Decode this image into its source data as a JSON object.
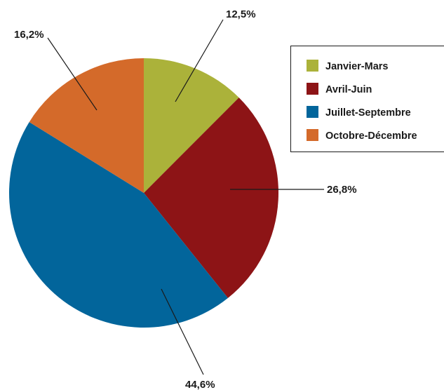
{
  "chart_data": {
    "type": "pie",
    "slices": [
      {
        "name": "Janvier-Mars",
        "value": 12.5,
        "label": "12,5%",
        "color": "#abb23a"
      },
      {
        "name": "Avril-Juin",
        "value": 26.8,
        "label": "26,8%",
        "color": "#8d1416"
      },
      {
        "name": "Juillet-Septembre",
        "value": 44.6,
        "label": "44,6%",
        "color": "#02659b"
      },
      {
        "name": "Octobre-Décembre",
        "value": 16.2,
        "label": "16,2%",
        "color": "#d46a2a"
      }
    ],
    "legend_position": "top-right",
    "start_angle": "12 o'clock, clockwise"
  }
}
